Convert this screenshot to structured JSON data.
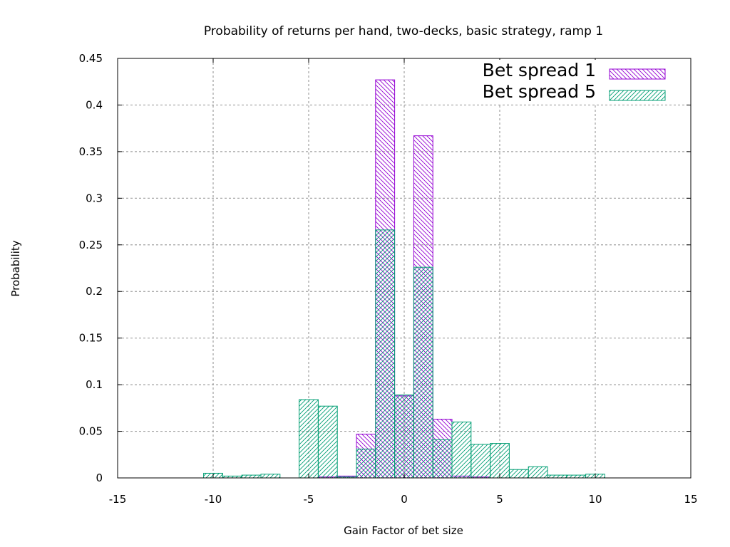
{
  "chart_data": {
    "type": "bar",
    "title": "Probability of returns per hand, two-decks, basic strategy, ramp 1",
    "xlabel": "Gain Factor of bet size",
    "ylabel": "Probability",
    "xlim": [
      -15,
      15
    ],
    "ylim": [
      0,
      0.45
    ],
    "xticks": [
      -15,
      -10,
      -5,
      0,
      5,
      10,
      15
    ],
    "xtick_labels": [
      "-15",
      "-10",
      "-5",
      "0",
      "5",
      "10",
      "15"
    ],
    "yticks": [
      0,
      0.05,
      0.1,
      0.15,
      0.2,
      0.25,
      0.3,
      0.35,
      0.4,
      0.45
    ],
    "ytick_labels": [
      "0",
      "0.05",
      "0.1",
      "0.15",
      "0.2",
      "0.25",
      "0.3",
      "0.35",
      "0.4",
      "0.45"
    ],
    "grid": true,
    "legend_position": "top-right",
    "bin_width": 1,
    "series": [
      {
        "name": "Bet spread 1",
        "color": "#9400d3",
        "hatch": "backslash",
        "x": [
          -4,
          -3,
          -2,
          -1,
          0,
          1,
          2,
          3,
          4
        ],
        "values": [
          0.001,
          0.002,
          0.047,
          0.427,
          0.088,
          0.367,
          0.063,
          0.002,
          0.001
        ]
      },
      {
        "name": "Bet spread 5",
        "color": "#009e73",
        "hatch": "slash",
        "x": [
          -10,
          -9,
          -8,
          -7,
          -5,
          -4,
          -3,
          -2,
          -1,
          0,
          1,
          2,
          3,
          4,
          5,
          6,
          7,
          8,
          9,
          10
        ],
        "values": [
          0.005,
          0.002,
          0.003,
          0.004,
          0.084,
          0.077,
          0.001,
          0.031,
          0.266,
          0.089,
          0.226,
          0.041,
          0.06,
          0.036,
          0.037,
          0.009,
          0.012,
          0.003,
          0.003,
          0.004
        ]
      }
    ]
  }
}
